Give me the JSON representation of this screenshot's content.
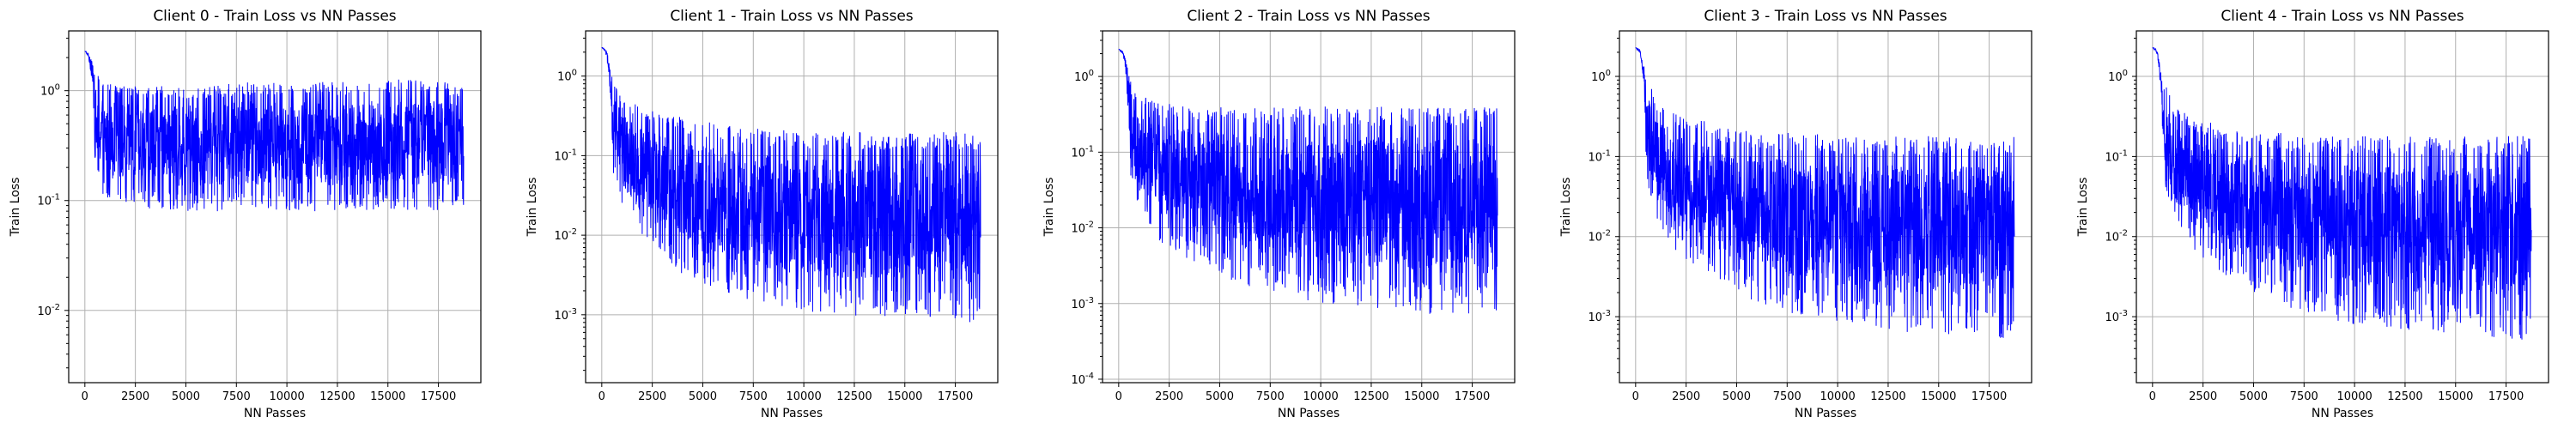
{
  "chart_data": [
    {
      "type": "line",
      "title": "Client 0 - Train Loss vs NN Passes",
      "xlabel": "NN Passes",
      "ylabel": "Train Loss",
      "yscale": "log",
      "xlim": [
        -800,
        19600
      ],
      "ylim": [
        0.0022,
        3.5
      ],
      "xticks": [
        0,
        2500,
        5000,
        7500,
        10000,
        12500,
        15000,
        17500
      ],
      "xtick_labels": [
        "0",
        "2500",
        "5000",
        "7500",
        "10000",
        "12500",
        "15000",
        "17500"
      ],
      "yticks": [
        0.01,
        0.1,
        1
      ],
      "ytick_labels": [
        "10^-2",
        "10^-1",
        "10^0"
      ],
      "grid": true,
      "color": "#0000ff",
      "series": [
        {
          "x": [
            0,
            200,
            500,
            1000,
            2000,
            4000,
            6000,
            8000,
            10000,
            12000,
            14000,
            16000,
            18000,
            18750
          ],
          "upper": [
            2.3,
            2.2,
            1.5,
            1.2,
            1.1,
            1.1,
            1.1,
            1.2,
            1.2,
            1.2,
            1.2,
            1.3,
            1.2,
            1.1
          ],
          "lower": [
            2.3,
            1.9,
            0.15,
            0.1,
            0.09,
            0.08,
            0.08,
            0.08,
            0.08,
            0.08,
            0.08,
            0.08,
            0.08,
            0.09
          ]
        }
      ]
    },
    {
      "type": "line",
      "title": "Client 1 - Train Loss vs NN Passes",
      "xlabel": "NN Passes",
      "ylabel": "Train Loss",
      "yscale": "log",
      "xlim": [
        -800,
        19600
      ],
      "ylim": [
        0.00014,
        3.7
      ],
      "xticks": [
        0,
        2500,
        5000,
        7500,
        10000,
        12500,
        15000,
        17500
      ],
      "xtick_labels": [
        "0",
        "2500",
        "5000",
        "7500",
        "10000",
        "12500",
        "15000",
        "17500"
      ],
      "yticks": [
        0.001,
        0.01,
        0.1,
        1
      ],
      "ytick_labels": [
        "10^-3",
        "10^-2",
        "10^-1",
        "10^0"
      ],
      "grid": true,
      "color": "#0000ff",
      "series": [
        {
          "x": [
            0,
            200,
            500,
            1000,
            2000,
            4000,
            6000,
            8000,
            10000,
            12000,
            14000,
            16000,
            18000,
            18750
          ],
          "upper": [
            2.3,
            2.2,
            1.0,
            0.55,
            0.4,
            0.3,
            0.25,
            0.22,
            0.2,
            0.2,
            0.2,
            0.2,
            0.2,
            0.2
          ],
          "lower": [
            2.3,
            1.9,
            0.06,
            0.02,
            0.008,
            0.003,
            0.0018,
            0.0014,
            0.0011,
            0.001,
            0.0009,
            0.0009,
            0.0008,
            0.0008
          ]
        }
      ]
    },
    {
      "type": "line",
      "title": "Client 2 - Train Loss vs NN Passes",
      "xlabel": "NN Passes",
      "ylabel": "Train Loss",
      "yscale": "log",
      "xlim": [
        -800,
        19600
      ],
      "ylim": [
        9e-05,
        4.0
      ],
      "xticks": [
        0,
        2500,
        5000,
        7500,
        10000,
        12500,
        15000,
        17500
      ],
      "xtick_labels": [
        "0",
        "2500",
        "5000",
        "7500",
        "10000",
        "12500",
        "15000",
        "17500"
      ],
      "yticks": [
        0.0001,
        0.001,
        0.01,
        0.1,
        1
      ],
      "ytick_labels": [
        "10^-4",
        "10^-3",
        "10^-2",
        "10^-1",
        "10^0"
      ],
      "grid": true,
      "color": "#0000ff",
      "series": [
        {
          "x": [
            0,
            200,
            500,
            1000,
            2000,
            4000,
            6000,
            8000,
            10000,
            12000,
            14000,
            16000,
            18000,
            18750
          ],
          "upper": [
            2.3,
            2.2,
            1.1,
            0.6,
            0.45,
            0.4,
            0.4,
            0.4,
            0.4,
            0.4,
            0.4,
            0.4,
            0.4,
            0.4
          ],
          "lower": [
            2.3,
            1.9,
            0.05,
            0.015,
            0.006,
            0.003,
            0.0018,
            0.0013,
            0.001,
            0.0009,
            0.0008,
            0.0007,
            0.0007,
            0.0007
          ]
        }
      ]
    },
    {
      "type": "line",
      "title": "Client 3 - Train Loss vs NN Passes",
      "xlabel": "NN Passes",
      "ylabel": "Train Loss",
      "yscale": "log",
      "xlim": [
        -800,
        19600
      ],
      "ylim": [
        0.00015,
        3.7
      ],
      "xticks": [
        0,
        2500,
        5000,
        7500,
        10000,
        12500,
        15000,
        17500
      ],
      "xtick_labels": [
        "0",
        "2500",
        "5000",
        "7500",
        "10000",
        "12500",
        "15000",
        "17500"
      ],
      "yticks": [
        0.001,
        0.01,
        0.1,
        1
      ],
      "ytick_labels": [
        "10^-3",
        "10^-2",
        "10^-1",
        "10^0"
      ],
      "grid": true,
      "color": "#0000ff",
      "series": [
        {
          "x": [
            0,
            200,
            500,
            1000,
            2000,
            4000,
            6000,
            8000,
            10000,
            12000,
            14000,
            16000,
            18000,
            18750
          ],
          "upper": [
            2.3,
            2.2,
            1.0,
            0.5,
            0.35,
            0.25,
            0.2,
            0.2,
            0.18,
            0.18,
            0.18,
            0.18,
            0.18,
            0.18
          ],
          "lower": [
            2.3,
            1.9,
            0.05,
            0.015,
            0.006,
            0.0025,
            0.0015,
            0.001,
            0.0008,
            0.0007,
            0.0006,
            0.0006,
            0.0005,
            0.0005
          ]
        }
      ]
    },
    {
      "type": "line",
      "title": "Client 4 - Train Loss vs NN Passes",
      "xlabel": "NN Passes",
      "ylabel": "Train Loss",
      "yscale": "log",
      "xlim": [
        -800,
        19600
      ],
      "ylim": [
        0.00015,
        3.7
      ],
      "xticks": [
        0,
        2500,
        5000,
        7500,
        10000,
        12500,
        15000,
        17500
      ],
      "xtick_labels": [
        "0",
        "2500",
        "5000",
        "7500",
        "10000",
        "12500",
        "15000",
        "17500"
      ],
      "yticks": [
        0.001,
        0.01,
        0.1,
        1
      ],
      "ytick_labels": [
        "10^-3",
        "10^-2",
        "10^-1",
        "10^0"
      ],
      "grid": true,
      "color": "#0000ff",
      "series": [
        {
          "x": [
            0,
            200,
            500,
            1000,
            2000,
            4000,
            6000,
            8000,
            10000,
            12000,
            14000,
            16000,
            18000,
            18750
          ],
          "upper": [
            2.3,
            2.2,
            0.9,
            0.45,
            0.3,
            0.22,
            0.2,
            0.18,
            0.18,
            0.18,
            0.18,
            0.18,
            0.18,
            0.18
          ],
          "lower": [
            2.3,
            1.9,
            0.05,
            0.015,
            0.006,
            0.0025,
            0.0015,
            0.001,
            0.0008,
            0.0007,
            0.0006,
            0.0006,
            0.0005,
            0.0005
          ]
        }
      ]
    }
  ]
}
